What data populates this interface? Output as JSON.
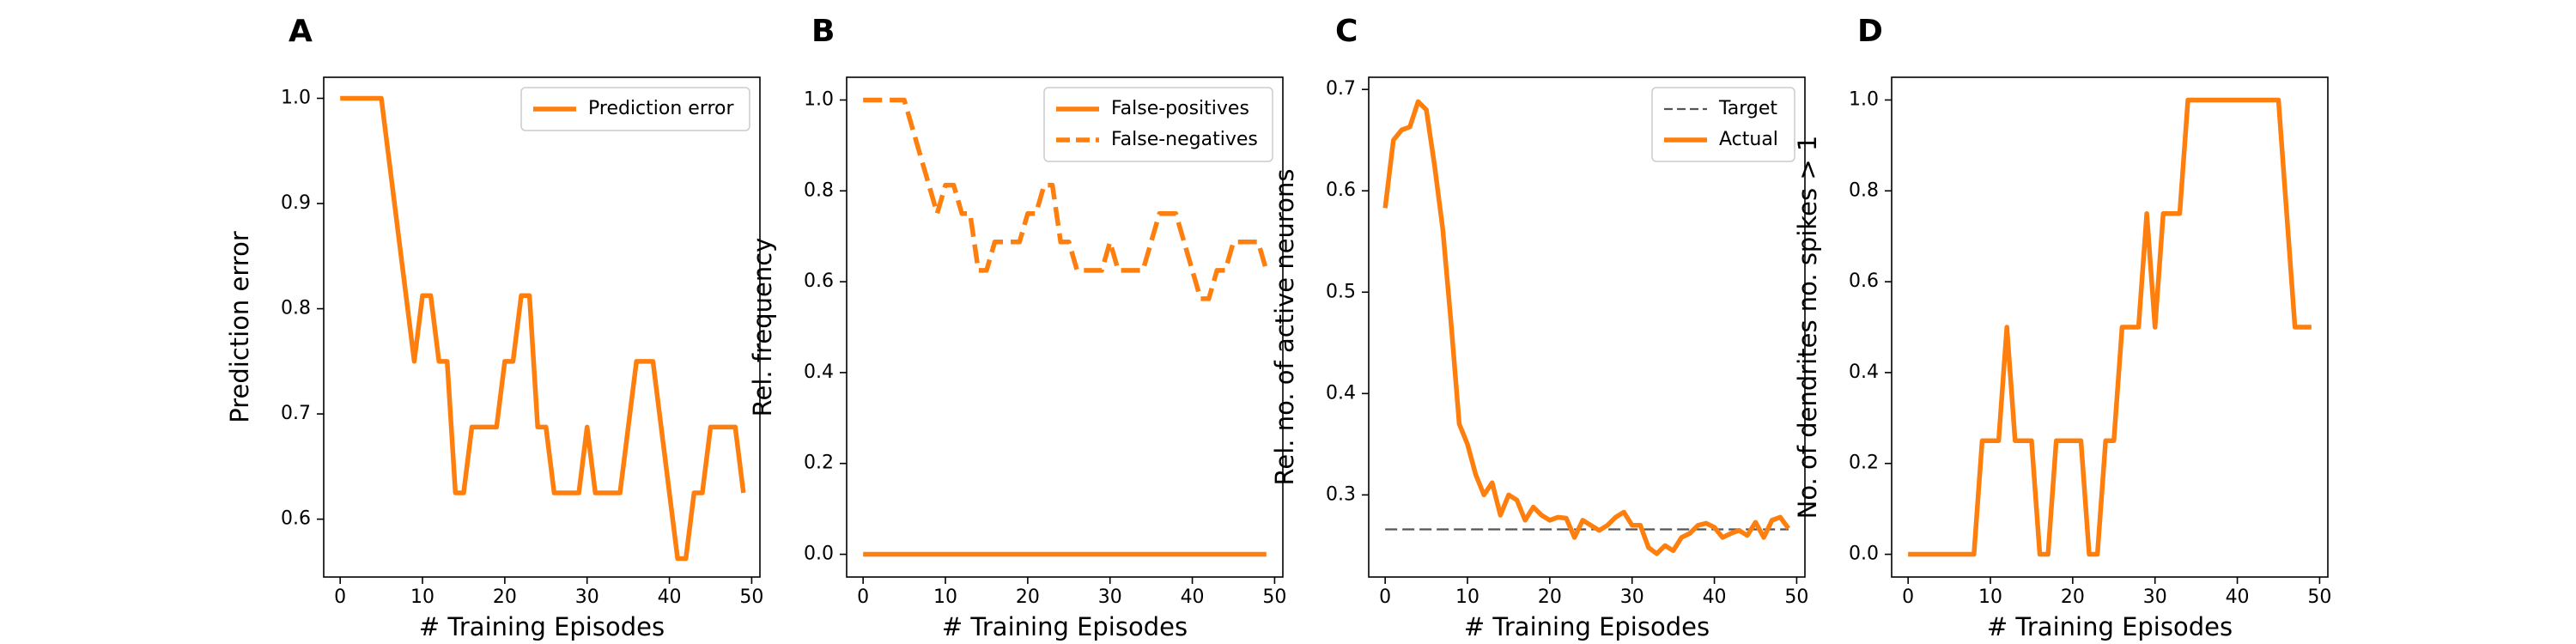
{
  "chart_data": [
    {
      "panel": "A",
      "type": "line",
      "xlabel": "# Training Episodes",
      "ylabel": "Prediction error",
      "xlim": [
        -2,
        51
      ],
      "ylim": [
        0.545,
        1.02
      ],
      "xticks": [
        "0",
        "10",
        "20",
        "30",
        "40",
        "50"
      ],
      "yticks": [
        "0.6",
        "0.7",
        "0.8",
        "0.9",
        "1.0"
      ],
      "legend": "top-right",
      "series": [
        {
          "name": "Prediction error",
          "style": "solid",
          "color": "#ff7f0e",
          "x": [
            0,
            1,
            2,
            3,
            4,
            5,
            6,
            7,
            8,
            9,
            10,
            11,
            12,
            13,
            14,
            15,
            16,
            17,
            18,
            19,
            20,
            21,
            22,
            23,
            24,
            25,
            26,
            27,
            28,
            29,
            30,
            31,
            32,
            33,
            34,
            35,
            36,
            37,
            38,
            39,
            40,
            41,
            42,
            43,
            44,
            45,
            46,
            47,
            48,
            49
          ],
          "y": [
            1.0,
            1.0,
            1.0,
            1.0,
            1.0,
            1.0,
            0.9375,
            0.875,
            0.8125,
            0.75,
            0.8125,
            0.8125,
            0.75,
            0.75,
            0.625,
            0.625,
            0.6875,
            0.6875,
            0.6875,
            0.6875,
            0.75,
            0.75,
            0.8125,
            0.8125,
            0.6875,
            0.6875,
            0.625,
            0.625,
            0.625,
            0.625,
            0.6875,
            0.625,
            0.625,
            0.625,
            0.625,
            0.6875,
            0.75,
            0.75,
            0.75,
            0.6875,
            0.625,
            0.5625,
            0.5625,
            0.625,
            0.625,
            0.6875,
            0.6875,
            0.6875,
            0.6875,
            0.625
          ]
        }
      ]
    },
    {
      "panel": "B",
      "type": "line",
      "xlabel": "# Training Episodes",
      "ylabel": "Rel. frequency",
      "xlim": [
        -2,
        51
      ],
      "ylim": [
        -0.05,
        1.05
      ],
      "xticks": [
        "0",
        "10",
        "20",
        "30",
        "40",
        "50"
      ],
      "yticks": [
        "0.0",
        "0.2",
        "0.4",
        "0.6",
        "0.8",
        "1.0"
      ],
      "legend": "top-right",
      "series": [
        {
          "name": "False-positives",
          "style": "solid",
          "color": "#ff7f0e",
          "x": [
            0,
            49
          ],
          "y": [
            0.0,
            0.0
          ]
        },
        {
          "name": "False-negatives",
          "style": "dashed",
          "color": "#ff7f0e",
          "x": [
            0,
            1,
            2,
            3,
            4,
            5,
            6,
            7,
            8,
            9,
            10,
            11,
            12,
            13,
            14,
            15,
            16,
            17,
            18,
            19,
            20,
            21,
            22,
            23,
            24,
            25,
            26,
            27,
            28,
            29,
            30,
            31,
            32,
            33,
            34,
            35,
            36,
            37,
            38,
            39,
            40,
            41,
            42,
            43,
            44,
            45,
            46,
            47,
            48,
            49
          ],
          "y": [
            1.0,
            1.0,
            1.0,
            1.0,
            1.0,
            1.0,
            0.9375,
            0.875,
            0.8125,
            0.75,
            0.8125,
            0.8125,
            0.75,
            0.75,
            0.625,
            0.625,
            0.6875,
            0.6875,
            0.6875,
            0.6875,
            0.75,
            0.75,
            0.8125,
            0.8125,
            0.6875,
            0.6875,
            0.625,
            0.625,
            0.625,
            0.625,
            0.6875,
            0.625,
            0.625,
            0.625,
            0.625,
            0.6875,
            0.75,
            0.75,
            0.75,
            0.6875,
            0.625,
            0.5625,
            0.5625,
            0.625,
            0.625,
            0.6875,
            0.6875,
            0.6875,
            0.6875,
            0.625
          ]
        }
      ]
    },
    {
      "panel": "C",
      "type": "line",
      "xlabel": "# Training Episodes",
      "ylabel": "Rel. no. of active neurons",
      "xlim": [
        -2,
        51
      ],
      "ylim": [
        0.219,
        0.712
      ],
      "xticks": [
        "0",
        "10",
        "20",
        "30",
        "40",
        "50"
      ],
      "yticks": [
        "0.3",
        "0.4",
        "0.5",
        "0.6",
        "0.7"
      ],
      "legend": "top-right",
      "series": [
        {
          "name": "Target",
          "style": "dashed-thin",
          "color": "#555555",
          "x": [
            0,
            49
          ],
          "y": [
            0.266,
            0.266
          ]
        },
        {
          "name": "Actual",
          "style": "solid",
          "color": "#ff7f0e",
          "x": [
            0,
            1,
            2,
            3,
            4,
            5,
            6,
            7,
            8,
            9,
            10,
            11,
            12,
            13,
            14,
            15,
            16,
            17,
            18,
            19,
            20,
            21,
            22,
            23,
            24,
            25,
            26,
            27,
            28,
            29,
            30,
            31,
            32,
            33,
            34,
            35,
            36,
            37,
            38,
            39,
            40,
            41,
            42,
            43,
            44,
            45,
            46,
            47,
            48,
            49
          ],
          "y": [
            0.583,
            0.65,
            0.66,
            0.663,
            0.688,
            0.68,
            0.625,
            0.562,
            0.47,
            0.37,
            0.35,
            0.32,
            0.3,
            0.312,
            0.28,
            0.3,
            0.295,
            0.275,
            0.288,
            0.28,
            0.275,
            0.278,
            0.277,
            0.258,
            0.275,
            0.27,
            0.265,
            0.27,
            0.278,
            0.283,
            0.27,
            0.27,
            0.248,
            0.242,
            0.25,
            0.245,
            0.258,
            0.262,
            0.27,
            0.272,
            0.268,
            0.258,
            0.262,
            0.265,
            0.26,
            0.273,
            0.258,
            0.275,
            0.278,
            0.267
          ]
        }
      ]
    },
    {
      "panel": "D",
      "type": "line",
      "xlabel": "# Training Episodes",
      "ylabel": "No. of dendrites no. spikes > 1",
      "xlim": [
        -2,
        51
      ],
      "ylim": [
        -0.05,
        1.05
      ],
      "xticks": [
        "0",
        "10",
        "20",
        "30",
        "40",
        "50"
      ],
      "yticks": [
        "0.0",
        "0.2",
        "0.4",
        "0.6",
        "0.8",
        "1.0"
      ],
      "legend": "none",
      "series": [
        {
          "name": "",
          "style": "solid",
          "color": "#ff7f0e",
          "x": [
            0,
            1,
            2,
            3,
            4,
            5,
            6,
            7,
            8,
            9,
            10,
            11,
            12,
            13,
            14,
            15,
            16,
            17,
            18,
            19,
            20,
            21,
            22,
            23,
            24,
            25,
            26,
            27,
            28,
            29,
            30,
            31,
            32,
            33,
            34,
            35,
            36,
            37,
            38,
            39,
            40,
            41,
            42,
            43,
            44,
            45,
            46,
            47,
            48,
            49
          ],
          "y": [
            0,
            0,
            0,
            0,
            0,
            0,
            0,
            0,
            0,
            0.25,
            0.25,
            0.25,
            0.5,
            0.25,
            0.25,
            0.25,
            0,
            0,
            0.25,
            0.25,
            0.25,
            0.25,
            0,
            0,
            0.25,
            0.25,
            0.5,
            0.5,
            0.5,
            0.75,
            0.5,
            0.75,
            0.75,
            0.75,
            1,
            1,
            1,
            1,
            1,
            1,
            1,
            1,
            1,
            1,
            1,
            1,
            0.75,
            0.5,
            0.5,
            0.5
          ]
        }
      ]
    }
  ]
}
